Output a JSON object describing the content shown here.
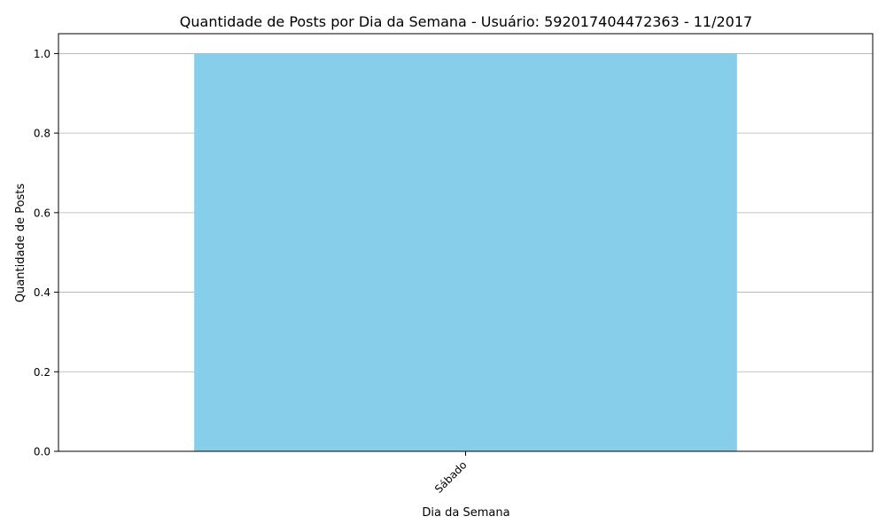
{
  "chart_data": {
    "type": "bar",
    "title": "Quantidade de Posts por Dia da Semana - Usuário: 592017404472363 - 11/2017",
    "xlabel": "Dia da Semana",
    "ylabel": "Quantidade de Posts",
    "categories": [
      "Sábado"
    ],
    "values": [
      1
    ],
    "ylim": [
      0,
      1.05
    ],
    "yticks": [
      "0.0",
      "0.2",
      "0.4",
      "0.6",
      "0.8",
      "1.0"
    ],
    "grid": "y",
    "legend": "none",
    "bar_color": "#87CEEB",
    "grid_color": "#b0b0b0"
  }
}
